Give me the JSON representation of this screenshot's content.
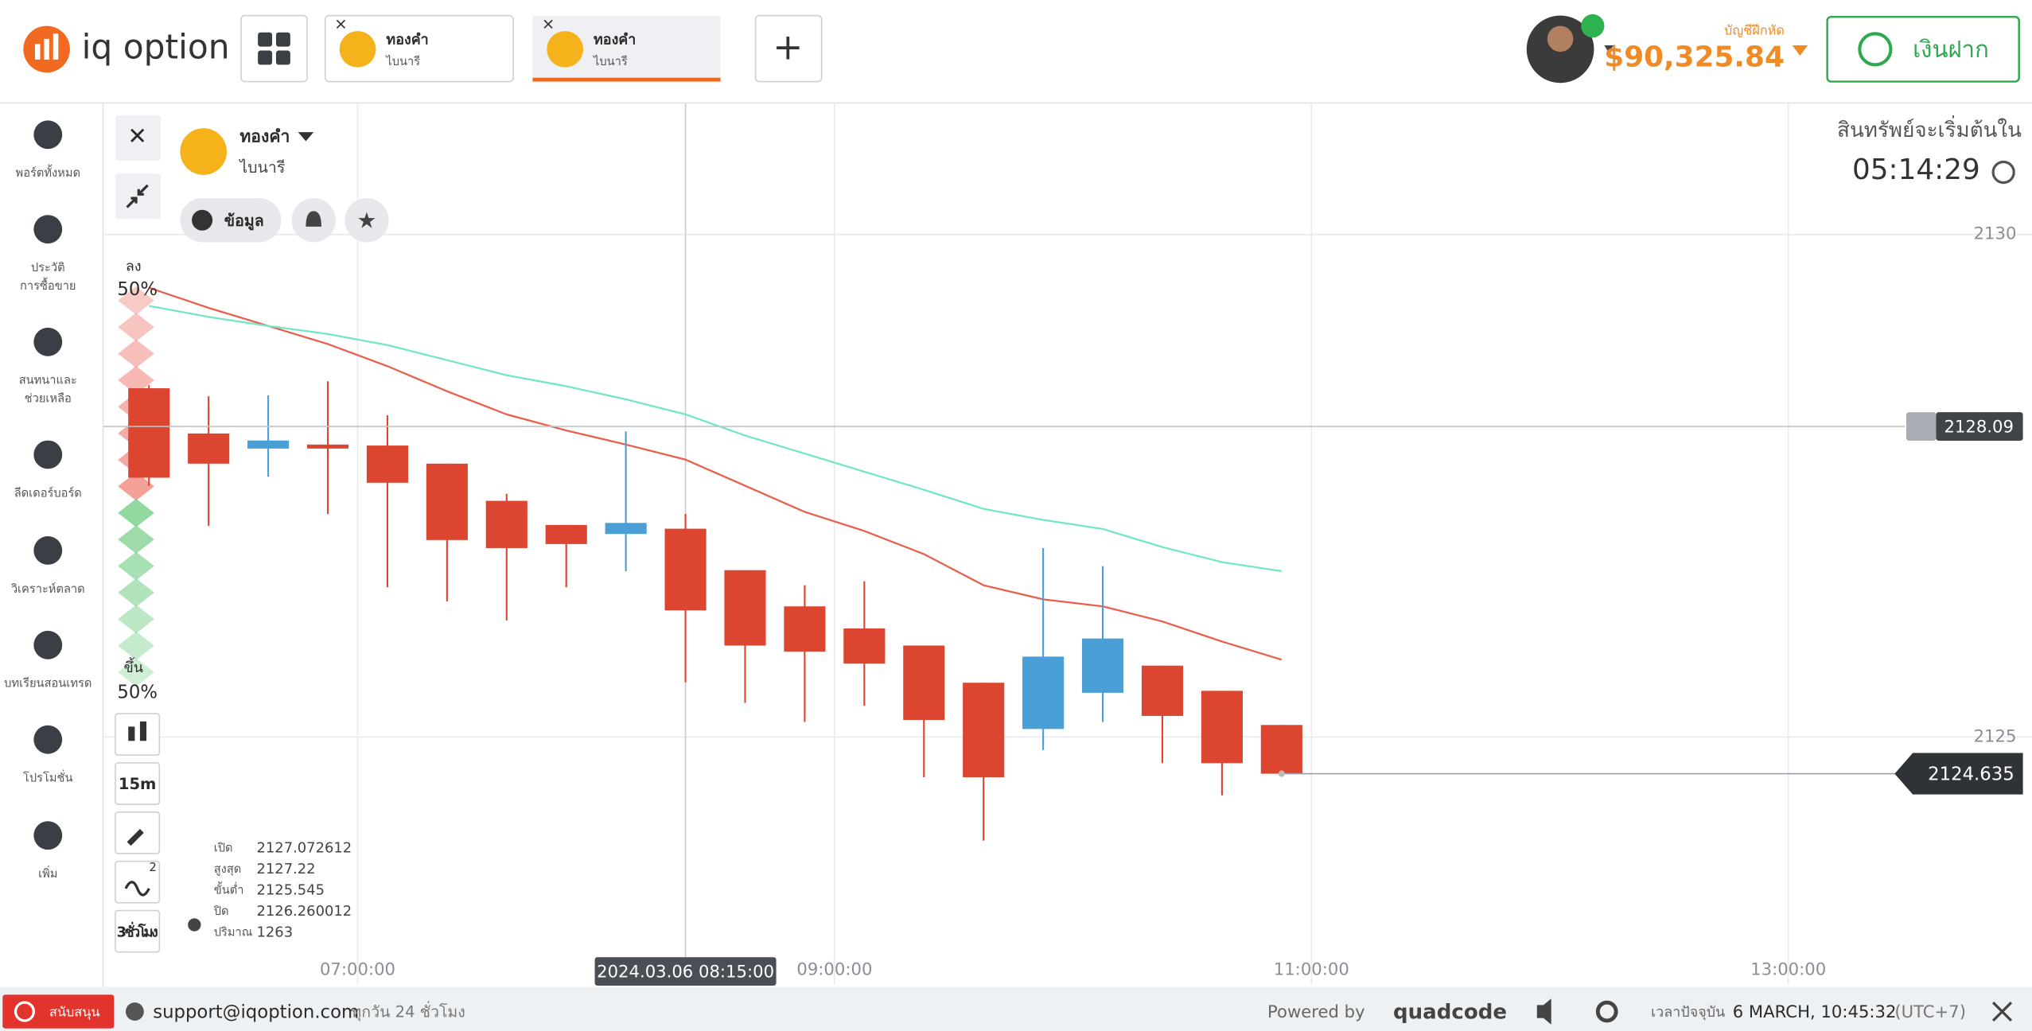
{
  "header": {
    "logo": "iq option",
    "tabs": [
      {
        "title": "ทองคำ",
        "subtitle": "ไบนารี"
      },
      {
        "title": "ทองคำ",
        "subtitle": "ไบนารี"
      }
    ],
    "account_label": "บัญชีฝึกหัด",
    "balance": "$90,325.84",
    "deposit": "เงินฝาก"
  },
  "sidebar": [
    {
      "lines": [
        "พอร์ตทั้งหมด"
      ]
    },
    {
      "lines": [
        "ประวัติ",
        "การซื้อขาย"
      ]
    },
    {
      "lines": [
        "สนทนาและ",
        "ช่วยเหลือ"
      ]
    },
    {
      "lines": [
        "ลีดเดอร์บอร์ด"
      ]
    },
    {
      "lines": [
        "วิเคราะห์ตลาด"
      ]
    },
    {
      "lines": [
        "บทเรียนสอนเทรด"
      ]
    },
    {
      "lines": [
        "โปรโมชั่น"
      ]
    },
    {
      "lines": [
        "เพิ่ม"
      ]
    }
  ],
  "asset": {
    "name": "ทองคำ",
    "type": "ไบนารี",
    "info": "ข้อมูล"
  },
  "timer": {
    "label": "สินทรัพย์จะเริ่มต้นใน",
    "time": "05:14:29"
  },
  "sentiment": {
    "down_label": "ลง",
    "down": "50%",
    "up_label": "ขึ้น",
    "up": "50%"
  },
  "toolbar": {
    "timeframe": "15m",
    "indicators": "2",
    "period": "3ชั่วโมง"
  },
  "ohlc": [
    {
      "label": "เปิด",
      "value": 2127.072612
    },
    {
      "label": "สูงสุด",
      "value": 2127.22
    },
    {
      "label": "ขั้นต่ำ",
      "value": 2125.545
    },
    {
      "label": "ปิด",
      "value": 2126.260012
    },
    {
      "label": "ปริมาณ",
      "value": 1263
    }
  ],
  "chart_data": {
    "type": "candlestick",
    "x": [
      6.125,
      6.375,
      6.625,
      6.875,
      7.125,
      7.375,
      7.625,
      7.875,
      8.125,
      8.375,
      8.625,
      8.875,
      9.125,
      9.375,
      9.625,
      9.875,
      10.125,
      10.375,
      10.625,
      10.875
    ],
    "open": [
      2128.47,
      2128.02,
      2127.87,
      2127.91,
      2127.9,
      2127.72,
      2127.35,
      2127.11,
      2127.02,
      2127.072612,
      2126.66,
      2126.3,
      2126.08,
      2125.91,
      2125.54,
      2125.08,
      2125.44,
      2125.71,
      2125.46,
      2125.12
    ],
    "high": [
      2128.5,
      2128.39,
      2128.4,
      2128.54,
      2128.2,
      2127.72,
      2127.42,
      2127.11,
      2128.04,
      2127.22,
      2126.66,
      2126.51,
      2126.55,
      2125.91,
      2125.54,
      2126.88,
      2126.7,
      2125.71,
      2125.46,
      2125.12
    ],
    "low": [
      2127.5,
      2127.1,
      2127.59,
      2127.22,
      2126.49,
      2126.35,
      2126.16,
      2126.49,
      2126.65,
      2125.545,
      2125.34,
      2125.15,
      2125.31,
      2124.6,
      2123.97,
      2124.87,
      2125.15,
      2124.74,
      2124.42,
      2124.635
    ],
    "close": [
      2127.58,
      2127.72,
      2127.95,
      2127.87,
      2127.53,
      2126.96,
      2126.88,
      2126.92,
      2127.13,
      2126.260012,
      2125.91,
      2125.85,
      2125.73,
      2125.17,
      2124.6,
      2125.8,
      2125.98,
      2125.21,
      2124.74,
      2124.635
    ],
    "up_color": "#4a9fd6",
    "down_color": "#dc4530",
    "series": [
      {
        "color": "#e8604c",
        "values": [
          2129.47,
          2129.27,
          2129.09,
          2128.91,
          2128.69,
          2128.44,
          2128.21,
          2128.05,
          2127.91,
          2127.76,
          2127.5,
          2127.24,
          2127.05,
          2126.82,
          2126.51,
          2126.37,
          2126.3,
          2126.15,
          2125.95,
          2125.77
        ]
      },
      {
        "color": "#72e6c6",
        "values": [
          2129.29,
          2129.18,
          2129.09,
          2129.01,
          2128.9,
          2128.75,
          2128.6,
          2128.49,
          2128.36,
          2128.21,
          2128,
          2127.82,
          2127.64,
          2127.46,
          2127.27,
          2127.16,
          2127.07,
          2126.89,
          2126.74,
          2126.65
        ]
      }
    ],
    "xlim": [
      5.935,
      14.022
    ],
    "xticks": [
      {
        "value": 7,
        "label": "07:00:00"
      },
      {
        "value": 9,
        "label": "09:00:00"
      },
      {
        "value": 11,
        "label": "11:00:00"
      },
      {
        "value": 13,
        "label": "13:00:00"
      }
    ],
    "ylim": [
      2122.539,
      2131.302
    ],
    "yticks": [
      2125,
      2130
    ],
    "grid": true,
    "alert_price": 2128.09,
    "current_price": 2124.635,
    "cursor_label": "2024.03.06 08:15:00"
  },
  "footer": {
    "support": "สนับสนุน",
    "email": "support@iqoption.com",
    "hours": "ทุกวัน 24 ชั่วโมง",
    "powered": "Powered by",
    "brand": "quadcode",
    "time_label": "เวลาปัจจุบัน",
    "time": "6 MARCH, 10:45:32",
    "tz": "(UTC+7)"
  }
}
